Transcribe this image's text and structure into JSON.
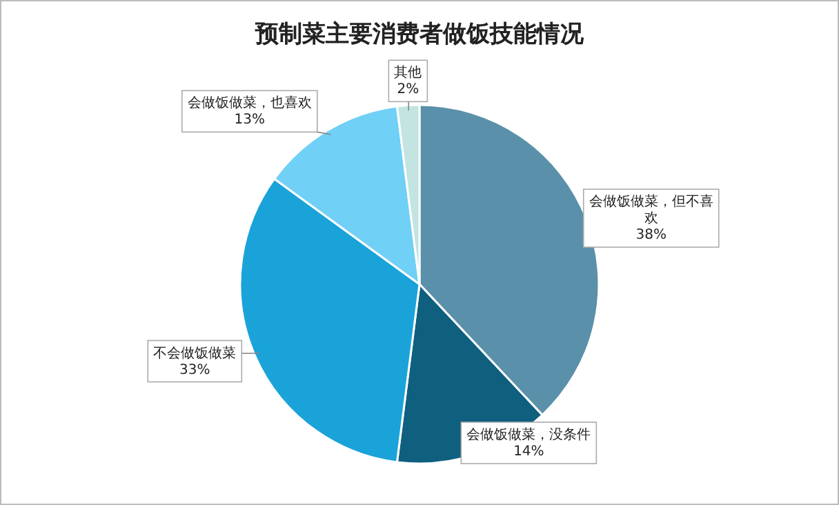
{
  "chart_data": {
    "type": "pie",
    "title": "预制菜主要消费者做饭技能情况",
    "categories": [
      "会做饭做菜，但不喜欢",
      "会做饭做菜，没条件",
      "不会做饭做菜",
      "会做饭做菜，也喜欢",
      "其他"
    ],
    "values": [
      38,
      14,
      33,
      13,
      2
    ],
    "colors": [
      "#5a90aa",
      "#0f5f7f",
      "#1aa3d9",
      "#70d0f6",
      "#c3e4e1"
    ],
    "value_labels": [
      "38%",
      "14%",
      "33%",
      "13%",
      "2%"
    ]
  }
}
